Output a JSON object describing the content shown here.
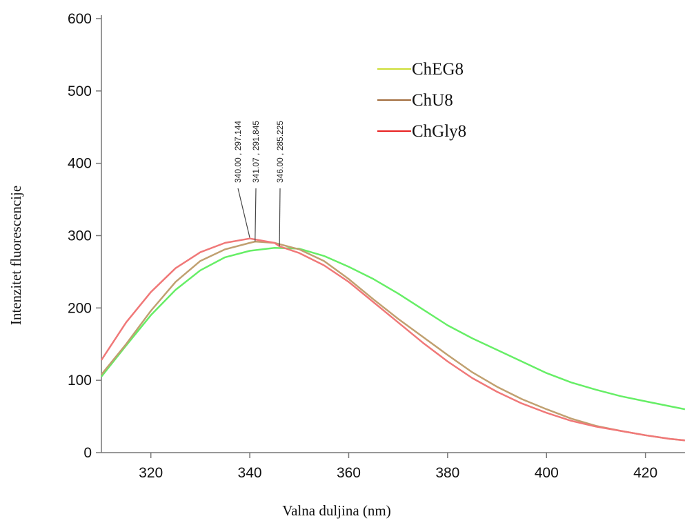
{
  "chart_data": {
    "type": "line",
    "xlabel": "Valna duljina (nm)",
    "ylabel": "Intenzitet fluorescencije",
    "xlim": [
      310,
      428
    ],
    "ylim": [
      0,
      600
    ],
    "xticks": [
      320,
      340,
      360,
      380,
      400,
      420
    ],
    "yticks": [
      0,
      100,
      200,
      300,
      400,
      500,
      600
    ],
    "grid": false,
    "legend_position": "top-right",
    "series": [
      {
        "name": "ChEG8",
        "color": "#66ee66",
        "legend_color": "#ccdd33",
        "x": [
          310,
          315,
          320,
          325,
          330,
          335,
          340,
          345,
          350,
          355,
          360,
          365,
          370,
          375,
          380,
          385,
          390,
          395,
          400,
          405,
          410,
          415,
          420,
          425,
          428
        ],
        "y": [
          105,
          148,
          190,
          225,
          252,
          270,
          279,
          283,
          282,
          272,
          257,
          240,
          220,
          198,
          176,
          158,
          142,
          126,
          110,
          97,
          87,
          78,
          71,
          64,
          60
        ]
      },
      {
        "name": "ChU8",
        "color": "#c0a070",
        "legend_color": "#a06a3a",
        "x": [
          310,
          315,
          320,
          325,
          330,
          335,
          340,
          341.07,
          345,
          350,
          355,
          360,
          365,
          370,
          375,
          380,
          385,
          390,
          395,
          400,
          405,
          410,
          415,
          420,
          425,
          428
        ],
        "y": [
          108,
          150,
          196,
          236,
          265,
          281,
          290,
          291.8,
          290,
          281,
          265,
          240,
          212,
          185,
          160,
          135,
          111,
          91,
          74,
          60,
          47,
          37,
          30,
          24,
          19,
          17
        ],
        "peak_label": "341.07 , 291.845"
      },
      {
        "name": "ChGly8",
        "color": "#f07878",
        "legend_color": "#e82020",
        "x": [
          310,
          315,
          320,
          325,
          330,
          335,
          340,
          345,
          346,
          350,
          355,
          360,
          365,
          370,
          375,
          380,
          385,
          390,
          395,
          400,
          405,
          410,
          415,
          420,
          425,
          428
        ],
        "y": [
          128,
          180,
          222,
          255,
          277,
          290,
          296,
          290,
          285.2,
          276,
          259,
          236,
          208,
          180,
          152,
          126,
          103,
          84,
          68,
          55,
          44,
          36,
          30,
          24,
          19,
          17
        ],
        "peak_label": "340.00 , 297.144"
      }
    ],
    "annotations": [
      {
        "label": "340.00 , 297.144",
        "x": 340.0,
        "y": 297.144
      },
      {
        "label": "341.07 , 291.845",
        "x": 341.07,
        "y": 291.845
      },
      {
        "label": "346.00 , 285.225",
        "x": 346.0,
        "y": 285.225
      }
    ]
  }
}
